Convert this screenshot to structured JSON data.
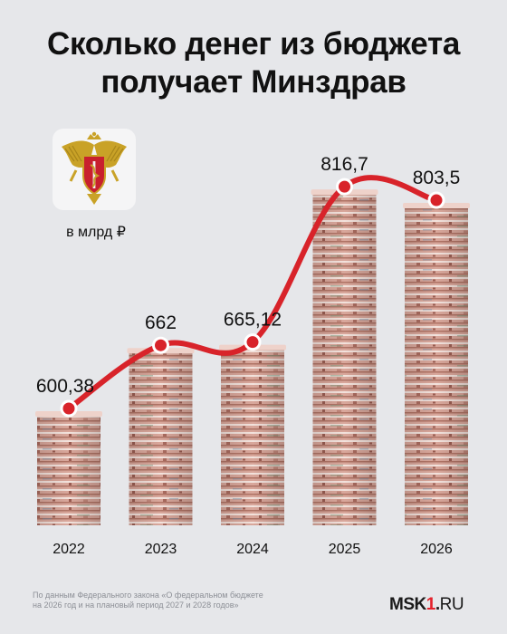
{
  "title_line1": "Сколько денег из бюджета",
  "title_line2": "получает Минздрав",
  "unit": "в млрд ₽",
  "footnote_line1": "По данным Федерального закона «О федеральном бюджете",
  "footnote_line2": "на 2026 год и на плановый период 2027 и 2028 годов»",
  "logo": {
    "part1": "MSK",
    "part2": "1",
    "part3": ".",
    "part4": "RU"
  },
  "colors": {
    "background": "#e6e7ea",
    "line": "#d8232a",
    "banknote": "#c98f84"
  },
  "chart_data": {
    "type": "bar",
    "categories": [
      "2022",
      "2023",
      "2024",
      "2025",
      "2026"
    ],
    "values": [
      600.38,
      662,
      665.12,
      816.7,
      803.5
    ],
    "value_labels": [
      "600,38",
      "662",
      "665,12",
      "816,7",
      "803,5"
    ],
    "title": "Сколько денег из бюджета получает Минздрав",
    "xlabel": "",
    "ylabel": "",
    "grid": false,
    "overlay": "line"
  }
}
